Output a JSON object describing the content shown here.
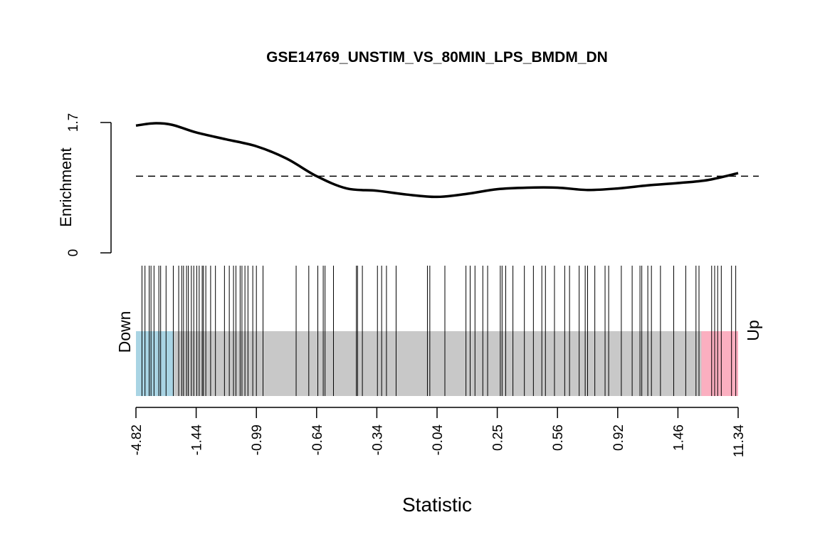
{
  "chart_data": {
    "type": "barcode",
    "title": "GSE14769_UNSTIM_VS_80MIN_LPS_BMDM_DN",
    "xlabel": "Statistic",
    "enrichment": {
      "ylabel": "Enrichment",
      "ylim": [
        0,
        1.7
      ],
      "yticks": [
        "0",
        "1.7"
      ],
      "reference_line": 1.0,
      "curve": [
        [
          0.0,
          1.66
        ],
        [
          0.03,
          1.69
        ],
        [
          0.06,
          1.67
        ],
        [
          0.1,
          1.57
        ],
        [
          0.15,
          1.48
        ],
        [
          0.2,
          1.39
        ],
        [
          0.25,
          1.23
        ],
        [
          0.3,
          1.0
        ],
        [
          0.35,
          0.84
        ],
        [
          0.4,
          0.81
        ],
        [
          0.45,
          0.76
        ],
        [
          0.5,
          0.73
        ],
        [
          0.55,
          0.77
        ],
        [
          0.6,
          0.83
        ],
        [
          0.65,
          0.85
        ],
        [
          0.7,
          0.85
        ],
        [
          0.75,
          0.82
        ],
        [
          0.8,
          0.84
        ],
        [
          0.85,
          0.88
        ],
        [
          0.9,
          0.91
        ],
        [
          0.95,
          0.95
        ],
        [
          1.0,
          1.04
        ]
      ]
    },
    "barcode": {
      "positions": [
        0.01,
        0.015,
        0.022,
        0.025,
        0.03,
        0.038,
        0.041,
        0.05,
        0.062,
        0.071,
        0.076,
        0.079,
        0.084,
        0.087,
        0.092,
        0.096,
        0.101,
        0.105,
        0.11,
        0.112,
        0.116,
        0.124,
        0.132,
        0.147,
        0.155,
        0.162,
        0.166,
        0.173,
        0.176,
        0.181,
        0.186,
        0.194,
        0.2,
        0.211,
        0.266,
        0.287,
        0.302,
        0.311,
        0.314,
        0.328,
        0.366,
        0.368,
        0.376,
        0.401,
        0.408,
        0.416,
        0.432,
        0.484,
        0.488,
        0.513,
        0.548,
        0.555,
        0.563,
        0.576,
        0.584,
        0.605,
        0.608,
        0.614,
        0.626,
        0.645,
        0.66,
        0.674,
        0.68,
        0.695,
        0.712,
        0.72,
        0.736,
        0.746,
        0.75,
        0.762,
        0.779,
        0.785,
        0.806,
        0.824,
        0.837,
        0.84,
        0.85,
        0.856,
        0.871,
        0.893,
        0.913,
        0.93,
        0.935,
        0.956,
        0.961,
        0.966,
        0.972,
        0.989,
        0.996
      ],
      "down_fraction": 0.063,
      "up_fraction": 0.061,
      "down_label": "Down",
      "up_label": "Up",
      "colors": {
        "down": "#a9d4e4",
        "up": "#fbafc0",
        "middle": "#c8c8c8"
      }
    },
    "xticks": [
      "-4.82",
      "-1.44",
      "-0.99",
      "-0.64",
      "-0.34",
      "-0.04",
      "0.25",
      "0.56",
      "0.92",
      "1.46",
      "11.34"
    ]
  }
}
